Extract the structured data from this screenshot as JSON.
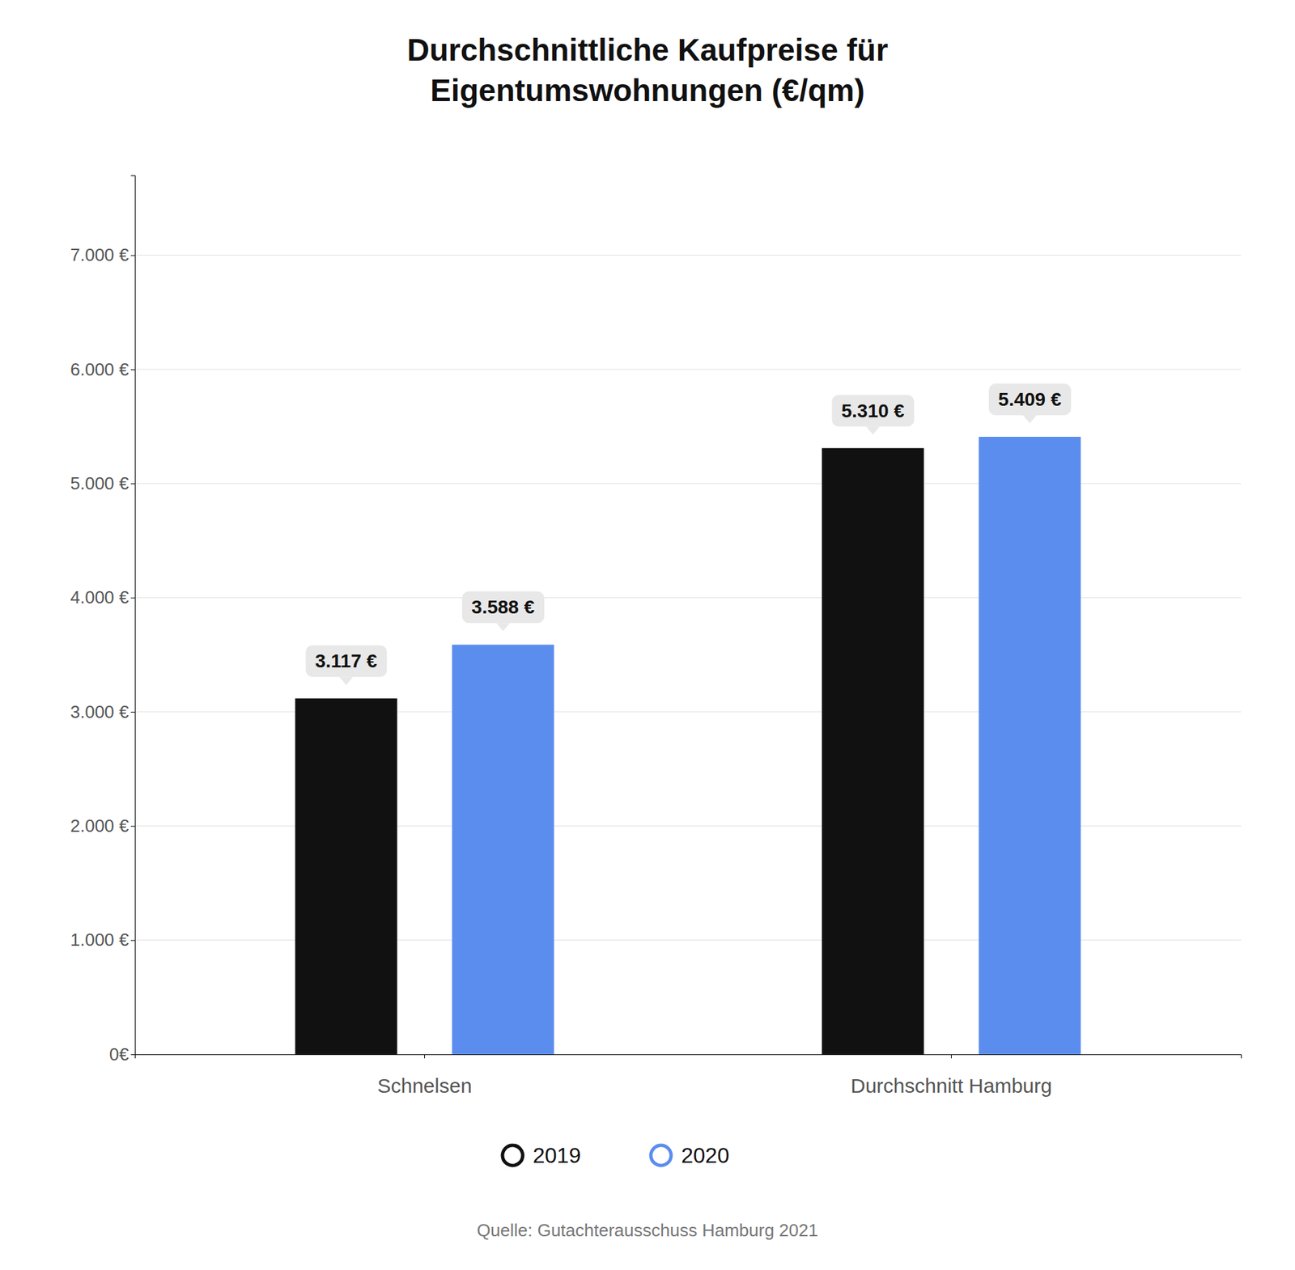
{
  "chart_data": {
    "type": "bar",
    "title": "Durchschnittliche Kaufpreise für\nEigentumswohnungen (€/qm)",
    "categories": [
      "Schnelsen",
      "Durchschnitt Hamburg"
    ],
    "series": [
      {
        "name": "2019",
        "color": "#111111",
        "values": [
          3117,
          5310
        ],
        "value_labels": [
          "3.117 €",
          "5.310 €"
        ]
      },
      {
        "name": "2020",
        "color": "#5B8DEF",
        "values": [
          3588,
          5409
        ],
        "value_labels": [
          "3.588 €",
          "5.409 €"
        ]
      }
    ],
    "ylim": [
      0,
      7700
    ],
    "yticks": [
      {
        "value": 0,
        "label": "0€"
      },
      {
        "value": 1000,
        "label": "1.000 €"
      },
      {
        "value": 2000,
        "label": "2.000 €"
      },
      {
        "value": 3000,
        "label": "3.000 €"
      },
      {
        "value": 4000,
        "label": "4.000 €"
      },
      {
        "value": 5000,
        "label": "5.000 €"
      },
      {
        "value": 6000,
        "label": "6.000 €"
      },
      {
        "value": 7000,
        "label": "7.000 €"
      }
    ],
    "grid": true,
    "data_labels": true,
    "legend": "bottom",
    "annotations": [
      "Quelle: Gutachterausschuss Hamburg 2021"
    ]
  }
}
